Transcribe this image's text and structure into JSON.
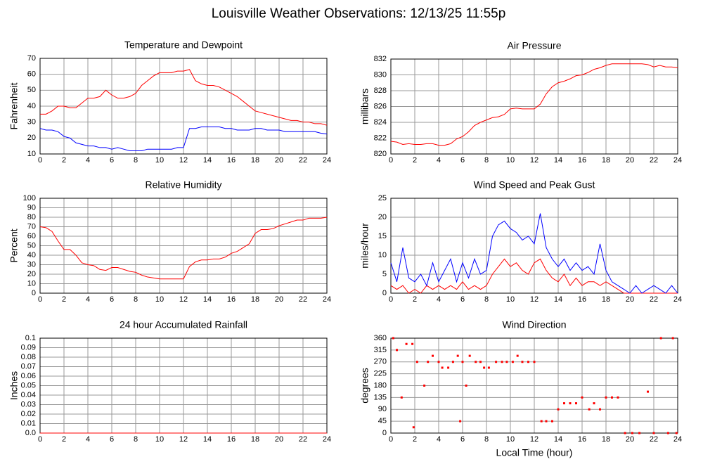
{
  "title": "Louisville Weather Observations: 12/13/25 11:55p",
  "chart_data": [
    {
      "type": "line",
      "title": "Temperature and Dewpoint",
      "ylabel": "Fahrenheit",
      "x": [
        0,
        0.5,
        1,
        1.5,
        2,
        2.5,
        3,
        3.5,
        4,
        4.5,
        5,
        5.5,
        6,
        6.5,
        7,
        7.5,
        8,
        8.5,
        9,
        9.5,
        10,
        10.5,
        11,
        11.5,
        12,
        12.5,
        13,
        13.5,
        14,
        14.5,
        15,
        15.5,
        16,
        16.5,
        17,
        17.5,
        18,
        18.5,
        19,
        19.5,
        20,
        20.5,
        21,
        21.5,
        22,
        22.5,
        23,
        23.5,
        24
      ],
      "series": [
        {
          "color": "#ff0000",
          "values": [
            35,
            35,
            37,
            40,
            40,
            39,
            39,
            42,
            45,
            45,
            46,
            50,
            47,
            45,
            45,
            46,
            48,
            53,
            56,
            59,
            61,
            61,
            61,
            62,
            62,
            63,
            56,
            54,
            53,
            53,
            52,
            50,
            48,
            46,
            43,
            40,
            37,
            36,
            35,
            34,
            33,
            32,
            31,
            31,
            30,
            30,
            29,
            29,
            28
          ]
        },
        {
          "color": "#0000ff",
          "values": [
            26,
            25,
            25,
            24,
            21,
            20,
            17,
            16,
            15,
            15,
            14,
            14,
            13,
            14,
            13,
            12,
            12,
            12,
            13,
            13,
            13,
            13,
            13,
            14,
            14,
            26,
            26,
            27,
            27,
            27,
            27,
            26,
            26,
            25,
            25,
            25,
            26,
            26,
            25,
            25,
            25,
            24,
            24,
            24,
            24,
            24,
            24,
            23,
            22.5
          ]
        }
      ],
      "xlim": [
        0,
        24
      ],
      "xticks": [
        0,
        2,
        4,
        6,
        8,
        10,
        12,
        14,
        16,
        18,
        20,
        22,
        24
      ],
      "ylim": [
        10,
        70
      ],
      "yticks": [
        10,
        20,
        30,
        40,
        50,
        60,
        70
      ],
      "grid": true
    },
    {
      "type": "line",
      "title": "Air Pressure",
      "ylabel": "millibars",
      "x": [
        0,
        0.5,
        1,
        1.5,
        2,
        2.5,
        3,
        3.5,
        4,
        4.5,
        5,
        5.5,
        6,
        6.5,
        7,
        7.5,
        8,
        8.5,
        9,
        9.5,
        10,
        10.5,
        11,
        11.5,
        12,
        12.5,
        13,
        13.5,
        14,
        14.5,
        15,
        15.5,
        16,
        16.5,
        17,
        17.5,
        18,
        18.5,
        19,
        19.5,
        20,
        20.5,
        21,
        21.5,
        22,
        22.5,
        23,
        23.5,
        24
      ],
      "series": [
        {
          "color": "#ff0000",
          "values": [
            821.6,
            821.5,
            821.2,
            821.3,
            821.2,
            821.2,
            821.3,
            821.3,
            821.1,
            821.1,
            821.3,
            821.9,
            822.2,
            822.8,
            823.6,
            824.0,
            824.3,
            824.6,
            824.7,
            825.0,
            825.7,
            825.8,
            825.7,
            825.7,
            825.7,
            826.3,
            827.6,
            828.5,
            829.0,
            829.2,
            829.5,
            829.9,
            830.0,
            830.3,
            830.7,
            830.9,
            831.2,
            831.4,
            831.4,
            831.4,
            831.4,
            831.4,
            831.4,
            831.3,
            831.0,
            831.2,
            831.0,
            831.0,
            830.9
          ]
        }
      ],
      "xlim": [
        0,
        24
      ],
      "xticks": [
        0,
        2,
        4,
        6,
        8,
        10,
        12,
        14,
        16,
        18,
        20,
        22,
        24
      ],
      "ylim": [
        820,
        832
      ],
      "yticks": [
        820,
        822,
        824,
        826,
        828,
        830,
        832
      ],
      "grid": true
    },
    {
      "type": "line",
      "title": "Relative Humidity",
      "ylabel": "Percent",
      "x": [
        0,
        0.5,
        1,
        1.5,
        2,
        2.5,
        3,
        3.5,
        4,
        4.5,
        5,
        5.5,
        6,
        6.5,
        7,
        7.5,
        8,
        8.5,
        9,
        9.5,
        10,
        10.5,
        11,
        11.5,
        12,
        12.5,
        13,
        13.5,
        14,
        14.5,
        15,
        15.5,
        16,
        16.5,
        17,
        17.5,
        18,
        18.5,
        19,
        19.5,
        20,
        20.5,
        21,
        21.5,
        22,
        22.5,
        23,
        23.5,
        24
      ],
      "series": [
        {
          "color": "#ff0000",
          "values": [
            70,
            69,
            65,
            55,
            46,
            46,
            40,
            32,
            30,
            29,
            25,
            24,
            27,
            27,
            25,
            23,
            22,
            19,
            17,
            16,
            15,
            15,
            15,
            15,
            15,
            28,
            33,
            35,
            35,
            36,
            36,
            38,
            42,
            44,
            48,
            52,
            63,
            67,
            67,
            68,
            71,
            73,
            75,
            77,
            77,
            79,
            79,
            79,
            80
          ]
        }
      ],
      "xlim": [
        0,
        24
      ],
      "xticks": [
        0,
        2,
        4,
        6,
        8,
        10,
        12,
        14,
        16,
        18,
        20,
        22,
        24
      ],
      "ylim": [
        0,
        100
      ],
      "yticks": [
        0,
        10,
        20,
        30,
        40,
        50,
        60,
        70,
        80,
        90,
        100
      ],
      "grid": true
    },
    {
      "type": "line",
      "title": "Wind Speed and Peak Gust",
      "ylabel": "miles/hour",
      "x": [
        0,
        0.5,
        1,
        1.5,
        2,
        2.5,
        3,
        3.5,
        4,
        4.5,
        5,
        5.5,
        6,
        6.5,
        7,
        7.5,
        8,
        8.5,
        9,
        9.5,
        10,
        10.5,
        11,
        11.5,
        12,
        12.5,
        13,
        13.5,
        14,
        14.5,
        15,
        15.5,
        16,
        16.5,
        17,
        17.5,
        18,
        18.5,
        19,
        19.5,
        20,
        20.5,
        21,
        21.5,
        22,
        22.5,
        23,
        23.5,
        24
      ],
      "series": [
        {
          "color": "#ff0000",
          "values": [
            2,
            1,
            2,
            0,
            1,
            0,
            2,
            1,
            2,
            1,
            2,
            1,
            3,
            1,
            2,
            1,
            2,
            5,
            7,
            9,
            7,
            8,
            6,
            5,
            8,
            9,
            6,
            4,
            3,
            5,
            2,
            4,
            2,
            3,
            3,
            2,
            3,
            2,
            1,
            0,
            0,
            0,
            0,
            0,
            0,
            0,
            0,
            0,
            0
          ]
        },
        {
          "color": "#0000ff",
          "values": [
            8,
            3,
            12,
            4,
            3,
            5,
            2,
            8,
            3,
            6,
            9,
            3,
            8,
            4,
            9,
            5,
            6,
            15,
            18,
            19,
            17,
            16,
            14,
            15,
            13,
            21,
            12,
            9,
            7,
            9,
            6,
            8,
            6,
            7,
            5,
            13,
            6,
            3,
            2,
            1,
            0,
            2,
            0,
            1,
            2,
            1,
            0,
            2,
            0
          ]
        }
      ],
      "xlim": [
        0,
        24
      ],
      "xticks": [
        0,
        2,
        4,
        6,
        8,
        10,
        12,
        14,
        16,
        18,
        20,
        22,
        24
      ],
      "ylim": [
        0,
        25
      ],
      "yticks": [
        0,
        5,
        10,
        15,
        20,
        25
      ],
      "grid": true
    },
    {
      "type": "line",
      "title": "24 hour Accumulated Rainfall",
      "ylabel": "Inches",
      "x": [
        0,
        24
      ],
      "series": [
        {
          "color": "#ff0000",
          "values": [
            0,
            0
          ]
        }
      ],
      "xlim": [
        0,
        24
      ],
      "xticks": [
        0,
        2,
        4,
        6,
        8,
        10,
        12,
        14,
        16,
        18,
        20,
        22,
        24
      ],
      "ylim": [
        0,
        0.1
      ],
      "yticks": [
        {
          "value": 0,
          "label": "0.0"
        },
        0.01,
        0.02,
        0.03,
        0.04,
        0.05,
        0.06,
        0.07,
        0.08,
        0.09,
        0.1
      ],
      "grid": true
    },
    {
      "type": "scatter",
      "title": "Wind Direction",
      "ylabel": "degrees",
      "xlabel": "Local Time (hour)",
      "x": [
        0.2,
        0.5,
        0.9,
        1.3,
        1.8,
        1.9,
        2.2,
        2.8,
        3.1,
        3.5,
        4.0,
        4.3,
        4.8,
        5.2,
        5.6,
        5.8,
        6.0,
        6.3,
        6.6,
        7.1,
        7.5,
        7.8,
        8.2,
        8.8,
        9.3,
        9.7,
        10.2,
        10.6,
        11.0,
        11.5,
        12.0,
        12.6,
        13.0,
        13.5,
        14.0,
        14.5,
        15.0,
        15.5,
        16.0,
        16.6,
        17.0,
        17.5,
        18.0,
        18.5,
        19.0,
        19.6,
        20.2,
        20.8,
        21.5,
        22.0,
        22.6,
        23.2,
        23.6,
        23.9
      ],
      "series": [
        {
          "color": "#ff0000",
          "values": [
            360,
            315,
            135,
            338,
            338,
            22,
            270,
            180,
            270,
            293,
            270,
            248,
            248,
            270,
            293,
            45,
            270,
            180,
            293,
            270,
            270,
            248,
            248,
            270,
            270,
            270,
            270,
            293,
            270,
            270,
            270,
            45,
            45,
            45,
            90,
            113,
            113,
            113,
            135,
            90,
            113,
            90,
            135,
            135,
            135,
            0,
            0,
            0,
            157,
            0,
            360,
            0,
            360,
            0
          ]
        }
      ],
      "xlim": [
        0,
        24
      ],
      "xticks": [
        0,
        2,
        4,
        6,
        8,
        10,
        12,
        14,
        16,
        18,
        20,
        22,
        24
      ],
      "ylim": [
        0,
        360
      ],
      "yticks": [
        0,
        45,
        90,
        135,
        180,
        225,
        270,
        315,
        360
      ],
      "grid": true
    }
  ]
}
